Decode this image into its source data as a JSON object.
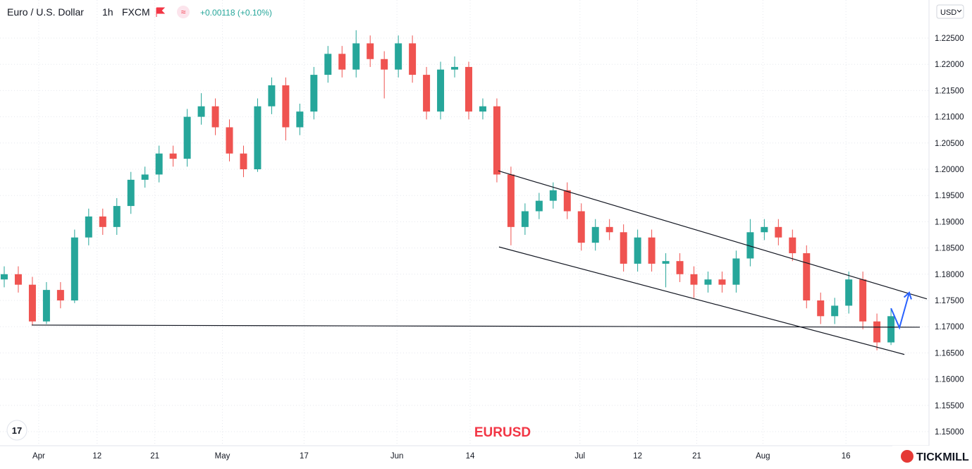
{
  "chart_data": {
    "type": "candlestick",
    "title": "Euro / U.S. Dollar",
    "interval": "1h",
    "source": "FXCM",
    "change": "+0.00118 (+0.10%)",
    "currency": "USD",
    "watermark": "EURUSD",
    "brand": "TICKMILL",
    "up_color": "#26a69a",
    "down_color": "#ef5350",
    "grid": true,
    "xlim": [
      0,
      66
    ],
    "ylim": [
      1.14731,
      1.23226
    ],
    "xticks": [
      {
        "value": 2.75,
        "label": "Apr"
      },
      {
        "value": 6.9,
        "label": "12"
      },
      {
        "value": 11.0,
        "label": "21"
      },
      {
        "value": 15.8,
        "label": "May"
      },
      {
        "value": 21.6,
        "label": "17"
      },
      {
        "value": 28.2,
        "label": "Jun"
      },
      {
        "value": 33.4,
        "label": "14"
      },
      {
        "value": 41.2,
        "label": "Jul"
      },
      {
        "value": 45.3,
        "label": "12"
      },
      {
        "value": 49.5,
        "label": "21"
      },
      {
        "value": 54.2,
        "label": "Aug"
      },
      {
        "value": 60.1,
        "label": "16"
      }
    ],
    "yticks": [
      {
        "value": 1.15,
        "label": "1.15000"
      },
      {
        "value": 1.155,
        "label": "1.15500"
      },
      {
        "value": 1.16,
        "label": "1.16000"
      },
      {
        "value": 1.165,
        "label": "1.16500"
      },
      {
        "value": 1.17,
        "label": "1.17000"
      },
      {
        "value": 1.175,
        "label": "1.17500"
      },
      {
        "value": 1.18,
        "label": "1.18000"
      },
      {
        "value": 1.185,
        "label": "1.18500"
      },
      {
        "value": 1.19,
        "label": "1.19000"
      },
      {
        "value": 1.195,
        "label": "1.19500"
      },
      {
        "value": 1.2,
        "label": "1.20000"
      },
      {
        "value": 1.205,
        "label": "1.20500"
      },
      {
        "value": 1.21,
        "label": "1.21000"
      },
      {
        "value": 1.215,
        "label": "1.21500"
      },
      {
        "value": 1.22,
        "label": "1.22000"
      },
      {
        "value": 1.225,
        "label": "1.22500"
      }
    ],
    "open": [
      1.179,
      1.18,
      1.178,
      1.171,
      1.177,
      1.175,
      1.187,
      1.191,
      1.189,
      1.193,
      1.198,
      1.199,
      1.203,
      1.202,
      1.21,
      1.212,
      1.208,
      1.203,
      1.2,
      1.212,
      1.216,
      1.208,
      1.211,
      1.218,
      1.222,
      1.219,
      1.224,
      1.221,
      1.219,
      1.224,
      1.218,
      1.211,
      1.219,
      1.2195,
      1.211,
      1.212,
      1.199,
      1.189,
      1.192,
      1.194,
      1.196,
      1.192,
      1.186,
      1.189,
      1.188,
      1.182,
      1.187,
      1.182,
      1.1825,
      1.18,
      1.178,
      1.179,
      1.178,
      1.183,
      1.188,
      1.189,
      1.187,
      1.184,
      1.175,
      1.172,
      1.174,
      1.179,
      1.171,
      1.167
    ],
    "high": [
      1.1815,
      1.1815,
      1.1795,
      1.1785,
      1.1785,
      1.1885,
      1.1925,
      1.1925,
      1.1945,
      1.1995,
      1.2005,
      1.2045,
      1.2045,
      1.2115,
      1.2145,
      1.2135,
      1.2095,
      1.2045,
      1.2135,
      1.2175,
      1.2175,
      1.2125,
      1.2195,
      1.2235,
      1.2235,
      1.2265,
      1.2255,
      1.2225,
      1.2255,
      1.2255,
      1.2195,
      1.2205,
      1.2215,
      1.2205,
      1.2135,
      1.2135,
      1.2005,
      1.1935,
      1.1955,
      1.1975,
      1.1975,
      1.1935,
      1.1905,
      1.1905,
      1.1895,
      1.1885,
      1.1885,
      1.184,
      1.184,
      1.1815,
      1.1805,
      1.1805,
      1.1845,
      1.1905,
      1.1905,
      1.1905,
      1.1885,
      1.1855,
      1.1765,
      1.1755,
      1.1805,
      1.1805,
      1.1725,
      1.1735
    ],
    "low": [
      1.1775,
      1.1765,
      1.1703,
      1.1705,
      1.1735,
      1.1745,
      1.1855,
      1.1875,
      1.1875,
      1.1915,
      1.1965,
      1.1975,
      1.2005,
      1.2005,
      1.2085,
      1.2065,
      1.2015,
      1.1985,
      1.1995,
      1.2105,
      1.2055,
      1.2065,
      1.2095,
      1.2165,
      1.2175,
      1.2175,
      1.2195,
      1.2135,
      1.2175,
      1.2165,
      1.2095,
      1.2095,
      1.2175,
      1.2095,
      1.2095,
      1.1975,
      1.1855,
      1.1875,
      1.1905,
      1.1925,
      1.1905,
      1.1845,
      1.1845,
      1.1865,
      1.1805,
      1.1805,
      1.1805,
      1.1775,
      1.1785,
      1.1755,
      1.1765,
      1.1765,
      1.1765,
      1.1815,
      1.1865,
      1.1855,
      1.1825,
      1.1735,
      1.1705,
      1.1705,
      1.1725,
      1.1695,
      1.1655,
      1.1665
    ],
    "close": [
      1.18,
      1.178,
      1.171,
      1.177,
      1.175,
      1.187,
      1.191,
      1.189,
      1.193,
      1.198,
      1.199,
      1.203,
      1.202,
      1.21,
      1.212,
      1.208,
      1.203,
      1.2,
      1.212,
      1.216,
      1.208,
      1.211,
      1.218,
      1.222,
      1.219,
      1.224,
      1.221,
      1.219,
      1.224,
      1.218,
      1.211,
      1.219,
      1.2195,
      1.211,
      1.212,
      1.199,
      1.189,
      1.192,
      1.194,
      1.196,
      1.192,
      1.186,
      1.189,
      1.188,
      1.182,
      1.187,
      1.182,
      1.1825,
      1.18,
      1.178,
      1.179,
      1.178,
      1.183,
      1.188,
      1.189,
      1.187,
      1.184,
      1.175,
      1.172,
      1.174,
      1.179,
      1.171,
      1.167,
      1.172
    ],
    "lines": [
      {
        "color": "#131722",
        "x": [
          35.4,
          65.85
        ],
        "y": [
          1.1997,
          1.1753
        ]
      },
      {
        "color": "#131722",
        "x": [
          35.45,
          64.25
        ],
        "y": [
          1.1852,
          1.1647
        ]
      },
      {
        "color": "#131722",
        "x": [
          2.25,
          65.35
        ],
        "y": [
          1.1703,
          1.1699
        ]
      },
      {
        "color": "#2962ff",
        "x": [
          63.3,
          63.9,
          64.6
        ],
        "y": [
          1.1735,
          1.1698,
          1.1765
        ]
      }
    ]
  }
}
